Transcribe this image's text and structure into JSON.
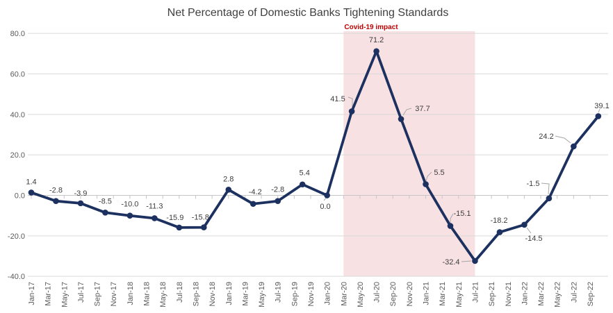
{
  "chart_data": {
    "type": "line",
    "title": "Net Percentage of Domestic Banks Tightening Standards",
    "xlabel": "",
    "ylabel": "",
    "ylim": [
      -40,
      80
    ],
    "grid": true,
    "legend": false,
    "y_axis": {
      "ticks": [
        {
          "label": "80.0",
          "value": 80
        },
        {
          "label": "60.0",
          "value": 60
        },
        {
          "label": "40.0",
          "value": 40
        },
        {
          "label": "20.0",
          "value": 20
        },
        {
          "label": "0.0",
          "value": 0
        },
        {
          "label": "-20.0",
          "value": -20
        },
        {
          "label": "-40.0",
          "value": -40
        }
      ]
    },
    "x_tick_labels": [
      "Jan-17",
      "Mar-17",
      "May-17",
      "Jul-17",
      "Sep-17",
      "Nov-17",
      "Jan-18",
      "Mar-18",
      "May-18",
      "Jul-18",
      "Sep-18",
      "Nov-18",
      "Jan-19",
      "Mar-19",
      "May-19",
      "Jul-19",
      "Sep-19",
      "Nov-19",
      "Jan-20",
      "Mar-20",
      "May-20",
      "Jul-20",
      "Sep-20",
      "Nov-20",
      "Jan-21",
      "Mar-21",
      "May-21",
      "Jul-21",
      "Sep-21",
      "Nov-21",
      "Jan-22",
      "Mar-22",
      "May-22",
      "Jul-22",
      "Sep-22"
    ],
    "points": [
      {
        "period": "Jan-17",
        "value": 1.4,
        "label": "1.4"
      },
      {
        "period": "Apr-17",
        "value": -2.8,
        "label": "-2.8"
      },
      {
        "period": "Jul-17",
        "value": -3.9,
        "label": "-3.9"
      },
      {
        "period": "Oct-17",
        "value": -8.5,
        "label": "-8.5"
      },
      {
        "period": "Jan-18",
        "value": -10.0,
        "label": "-10.0"
      },
      {
        "period": "Apr-18",
        "value": -11.3,
        "label": "-11.3"
      },
      {
        "period": "Jul-18",
        "value": -15.9,
        "label": "-15.9"
      },
      {
        "period": "Oct-18",
        "value": -15.8,
        "label": "-15.8"
      },
      {
        "period": "Jan-19",
        "value": 2.8,
        "label": "2.8"
      },
      {
        "period": "Apr-19",
        "value": -4.2,
        "label": "-4.2"
      },
      {
        "period": "Jul-19",
        "value": -2.8,
        "label": "-2.8"
      },
      {
        "period": "Oct-19",
        "value": 5.4,
        "label": "5.4"
      },
      {
        "period": "Jan-20",
        "value": 0.0,
        "label": "0.0"
      },
      {
        "period": "Apr-20",
        "value": 41.5,
        "label": "41.5"
      },
      {
        "period": "Jul-20",
        "value": 71.2,
        "label": "71.2"
      },
      {
        "period": "Oct-20",
        "value": 37.7,
        "label": "37.7"
      },
      {
        "period": "Jan-21",
        "value": 5.5,
        "label": "5.5"
      },
      {
        "period": "Apr-21",
        "value": -15.1,
        "label": "-15.1"
      },
      {
        "period": "Jul-21",
        "value": -32.4,
        "label": "-32.4"
      },
      {
        "period": "Oct-21",
        "value": -18.2,
        "label": "-18.2"
      },
      {
        "period": "Jan-22",
        "value": -14.5,
        "label": "-14.5"
      },
      {
        "period": "Apr-22",
        "value": -1.5,
        "label": "-1.5"
      },
      {
        "period": "Jul-22",
        "value": 24.2,
        "label": "24.2"
      },
      {
        "period": "Oct-22",
        "value": 39.1,
        "label": "39.1"
      }
    ],
    "annotation": {
      "label": "Covid-19 impact",
      "region_from": "Mar-20",
      "region_to": "Jul-21"
    },
    "colors": {
      "line": "#1d3160",
      "marker": "#1d3160",
      "region": "#f8e1e2",
      "annotation_text": "#C00000",
      "grid": "#d9d9d9",
      "axis": "#c6c6c6",
      "tick_label": "#595959",
      "data_label": "#3d3d3d",
      "title": "#404040",
      "leader": "#a6a6a6"
    }
  }
}
